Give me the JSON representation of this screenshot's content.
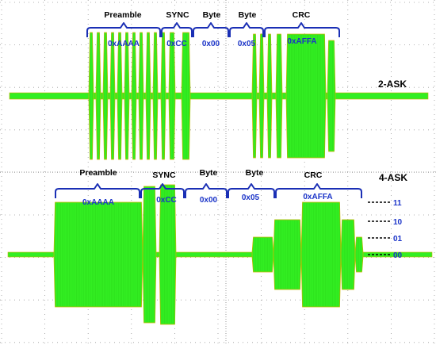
{
  "ask2": {
    "mode_label": "2-ASK",
    "fields": [
      {
        "name": "Preamble",
        "value": "0xAAAA"
      },
      {
        "name": "SYNC",
        "value": "0xCC"
      },
      {
        "name": "Byte",
        "value": "0x00"
      },
      {
        "name": "Byte",
        "value": "0x05"
      },
      {
        "name": "CRC",
        "value": "0xAFFA"
      }
    ]
  },
  "ask4": {
    "mode_label": "4-ASK",
    "fields": [
      {
        "name": "Preamble",
        "value": "0xAAAA"
      },
      {
        "name": "SYNC",
        "value": "0xCC"
      },
      {
        "name": "Byte",
        "value": "0x00"
      },
      {
        "name": "Byte",
        "value": "0x05"
      },
      {
        "name": "CRC",
        "value": "0xAFFA"
      }
    ],
    "levels": [
      "11",
      "10",
      "01",
      "00"
    ]
  },
  "colors": {
    "signal": "#33ee22",
    "signal_edge": "#c8b400",
    "brace": "#1a2fb5",
    "hex_text": "#1a33c8",
    "grid": "#9a9a9a"
  }
}
